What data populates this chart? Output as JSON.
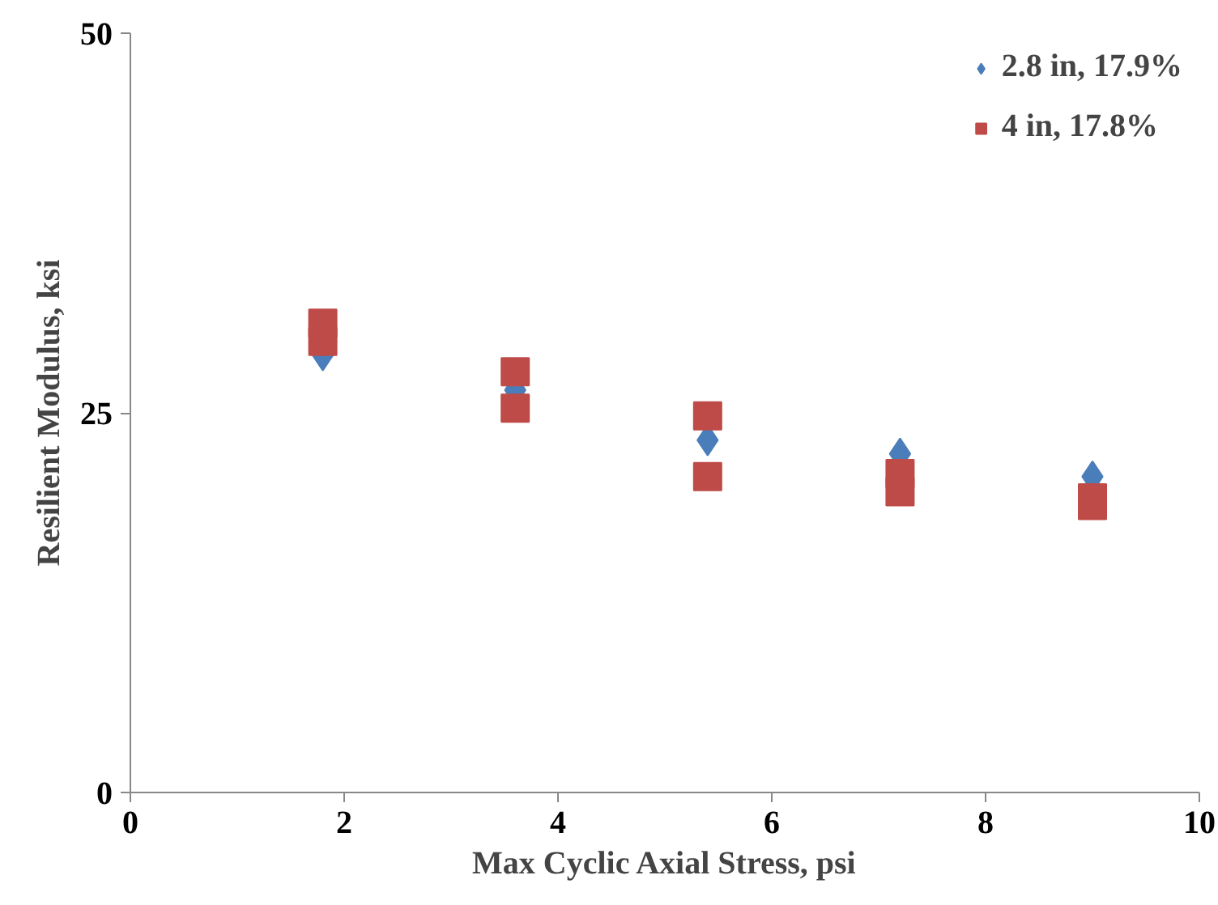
{
  "chart_data": {
    "type": "scatter",
    "xlabel": "Max Cyclic Axial Stress, psi",
    "ylabel": "Resilient Modulus, ksi",
    "xlim": [
      0,
      10
    ],
    "xticks": [
      0,
      2,
      4,
      6,
      8,
      10
    ],
    "ylim": [
      0,
      50
    ],
    "yticks": [
      0,
      25,
      50
    ],
    "grid": false,
    "legend": "top right",
    "series": [
      {
        "name": "2.8 in, 17.9%",
        "color": "#4a7ebb",
        "marker": "diamond",
        "x": [
          1.8,
          3.6,
          5.4,
          7.2,
          9.0
        ],
        "values": [
          28.8,
          26.5,
          23.2,
          22.3,
          20.8
        ]
      },
      {
        "name": "4 in, 17.8%",
        "color": "#be4b48",
        "marker": "square",
        "x": [
          1.8,
          1.8,
          3.6,
          3.6,
          5.4,
          5.4,
          7.2,
          7.2,
          9.0,
          9.0
        ],
        "values": [
          30.9,
          29.7,
          27.7,
          25.3,
          24.8,
          20.8,
          21.0,
          19.8,
          19.4,
          18.9
        ]
      }
    ]
  }
}
